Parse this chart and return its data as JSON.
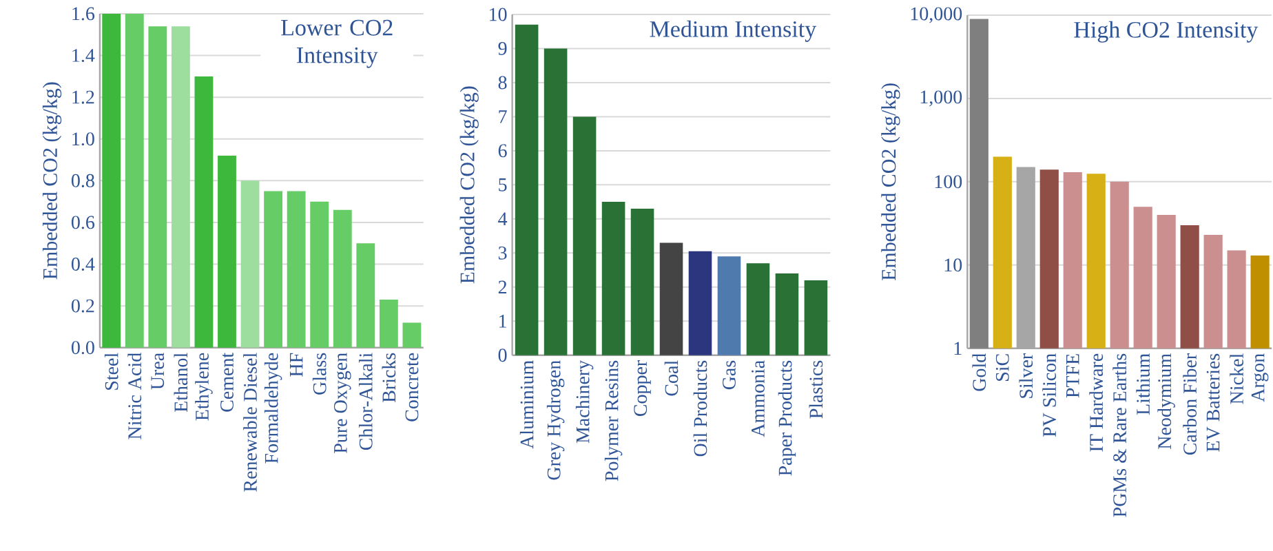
{
  "chart_data": [
    {
      "type": "bar",
      "title": "Lower CO2 Intensity",
      "ylabel": "Embedded CO2 (kg/kg)",
      "categories": [
        "Steel",
        "Nitric Acid",
        "Urea",
        "Ethanol",
        "Ethylene",
        "Cement",
        "Renewable Diesel",
        "Formaldehyde",
        "HF",
        "Glass",
        "Pure Oxygen",
        "Chlor-Alkali",
        "Bricks",
        "Concrete"
      ],
      "values": [
        1.6,
        1.6,
        1.54,
        1.54,
        1.3,
        0.92,
        0.8,
        0.75,
        0.75,
        0.7,
        0.66,
        0.5,
        0.23,
        0.12
      ],
      "colors": [
        "#3db83d",
        "#66cc66",
        "#66cc66",
        "#9ddd9d",
        "#3db83d",
        "#3db83d",
        "#9ddd9d",
        "#66cc66",
        "#66cc66",
        "#66cc66",
        "#66cc66",
        "#66cc66",
        "#66cc66",
        "#66cc66"
      ],
      "ylim": [
        0,
        1.6
      ],
      "yticks": [
        {
          "value": 0,
          "label": "0.0"
        },
        0.2,
        0.4,
        0.6,
        0.8,
        {
          "value": 1,
          "label": "1.0"
        },
        1.2,
        1.4,
        1.6
      ],
      "grid": "y"
    },
    {
      "type": "bar",
      "title": "Medium Intensity",
      "ylabel": "Embedded CO2 (kg/kg)",
      "categories": [
        "Aluminium",
        "Grey Hydrogen",
        "Machinery",
        "Polymer Resins",
        "Copper",
        "Coal",
        "Oil Products",
        "Gas",
        "Ammonia",
        "Paper Products",
        "Plastics"
      ],
      "values": [
        9.7,
        9.0,
        7.0,
        4.5,
        4.3,
        3.3,
        3.05,
        2.9,
        2.7,
        2.4,
        2.2
      ],
      "colors": [
        "#2a7136",
        "#2a7136",
        "#2a7136",
        "#2a7136",
        "#2a7136",
        "#444444",
        "#2b367f",
        "#4f7aae",
        "#2a7136",
        "#2a7136",
        "#2a7136"
      ],
      "ylim": [
        0,
        10
      ],
      "yticks": [
        0,
        1,
        2,
        3,
        4,
        5,
        6,
        7,
        8,
        9,
        10
      ],
      "grid": "y"
    },
    {
      "type": "bar",
      "title": "High CO2 Intensity",
      "ylabel": "Embedded CO2 (kg/kg)",
      "categories": [
        "Gold",
        "SiC",
        "Silver",
        "PV Silicon",
        "PTFE",
        "IT Hardware",
        "PGMs & Rare Earths",
        "Lithium",
        "Neodymium",
        "Carbon Fiber",
        "EV Batteries",
        "Nickel",
        "Argon"
      ],
      "values": [
        9000,
        200,
        150,
        140,
        130,
        125,
        100,
        50,
        40,
        30,
        23,
        15,
        13
      ],
      "colors": [
        "#7f7f7f",
        "#d6b015",
        "#a6a6a6",
        "#8f4f47",
        "#cc8f8f",
        "#d6b015",
        "#cc8f8f",
        "#cc8f8f",
        "#cc8f8f",
        "#8f4f47",
        "#cc8f8f",
        "#cc8f8f",
        "#bf8f00"
      ],
      "ylim": [
        1,
        10000
      ],
      "yticks": [
        1,
        10,
        100,
        {
          "value": 1000,
          "label": "1,000"
        },
        {
          "value": 10000,
          "label": "10,000"
        }
      ],
      "log": "y",
      "grid": "y"
    }
  ]
}
